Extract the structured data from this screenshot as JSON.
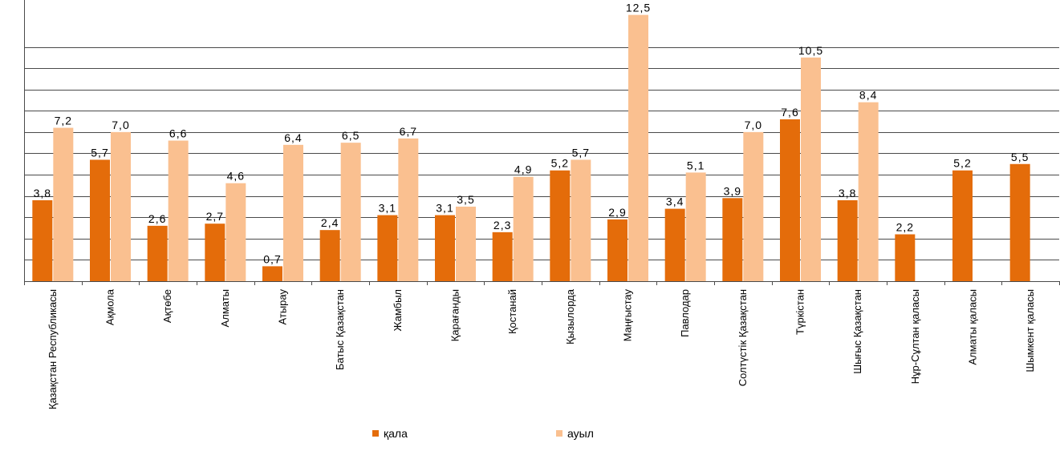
{
  "chart_data": {
    "type": "bar",
    "categories": [
      "Қазақстан Республикасы",
      "Ақмола",
      "Ақтөбе",
      "Алматы",
      "Атырау",
      "Батыс Қазақстан",
      "Жамбыл",
      "Қарағанды",
      "Қостанай",
      "Қызылорда",
      "Маңғыстау",
      "Павлодар",
      "Солтүстік Қазақстан",
      "Түркістан",
      "Шығыс Қазақстан",
      "Нұр-Сұлтан қаласы",
      "Алматы қаласы",
      "Шымкент қаласы"
    ],
    "series": [
      {
        "name": "қала",
        "color": "#E46C0A",
        "values": [
          3.8,
          5.7,
          2.6,
          2.7,
          0.7,
          2.4,
          3.1,
          3.1,
          2.3,
          5.2,
          2.9,
          3.4,
          3.9,
          7.6,
          3.8,
          2.2,
          5.2,
          5.5
        ],
        "labels": [
          "3,8",
          "5,7",
          "2,6",
          "2,7",
          "0,7",
          "2,4",
          "3,1",
          "3,1",
          "2,3",
          "5,2",
          "2,9",
          "3,4",
          "3,9",
          "7,6",
          "3,8",
          "2,2",
          "5,2",
          "5,5"
        ]
      },
      {
        "name": "ауыл",
        "color": "#FAC090",
        "values": [
          7.2,
          7.0,
          6.6,
          4.6,
          6.4,
          6.5,
          6.7,
          3.5,
          4.9,
          5.7,
          12.5,
          5.1,
          7.0,
          10.5,
          8.4,
          null,
          null,
          null
        ],
        "labels": [
          "7,2",
          "7,0",
          "6,6",
          "4,6",
          "6,4",
          "6,5",
          "6,7",
          "3,5",
          "4,9",
          "5,7",
          "12,5",
          "5,1",
          "7,0",
          "10,5",
          "8,4",
          "",
          "",
          ""
        ]
      }
    ],
    "ylim": [
      0,
      13.2
    ],
    "grid": true,
    "legend": "bottom"
  }
}
